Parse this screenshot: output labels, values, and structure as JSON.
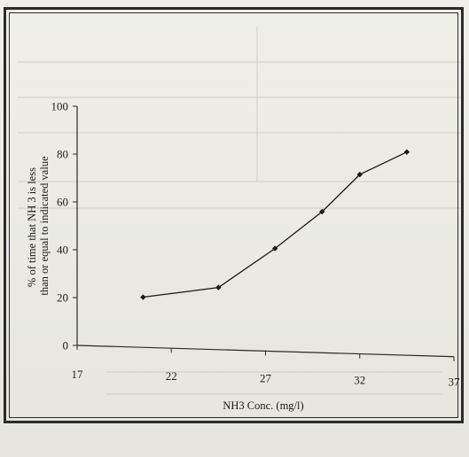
{
  "chart_data": {
    "type": "line",
    "title": "",
    "xlabel": "NH3 Conc. (mg/l)",
    "ylabel_lines": [
      "% of time that NH 3  is less",
      "than or equal to indicated value"
    ],
    "xlim": [
      17,
      37
    ],
    "ylim": [
      0,
      100
    ],
    "x_ticks": [
      17,
      22,
      27,
      32,
      37
    ],
    "y_ticks": [
      0,
      20,
      40,
      60,
      80,
      100
    ],
    "grid": false,
    "legend": "none",
    "series": [
      {
        "x": [
          20.5,
          24.5,
          27.5,
          30,
          32,
          34.5
        ],
        "y": [
          21,
          26,
          43,
          59,
          75,
          85
        ]
      }
    ],
    "colors": {
      "line": "#1a1a1a",
      "axis": "#2a2a2a",
      "frame": "#2b2b2b"
    }
  }
}
